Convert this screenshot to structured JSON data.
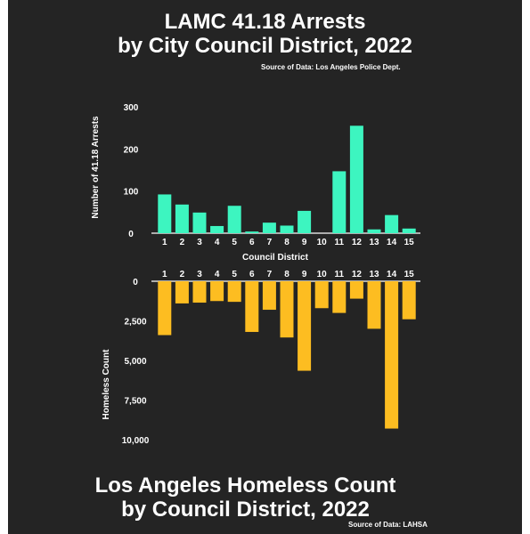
{
  "top_title_line1": "LAMC 41.18 Arrests",
  "top_title_line2": "by City Council District, 2022",
  "top_source": "Source of Data: Los Angeles Police Dept.",
  "bottom_title_line1": "Los Angeles Homeless Count",
  "bottom_title_line2": "by Council District, 2022",
  "bottom_source": "Source of Data: LAHSA",
  "colors": {
    "background": "#242424",
    "arrests": "#3df5c0",
    "homeless": "#fdbd21",
    "text": "#ffffff"
  },
  "chart_data": [
    {
      "type": "bar",
      "title": "LAMC 41.18 Arrests by City Council District, 2022",
      "xlabel": "Council District",
      "ylabel": "Number of 41.18 Arrests",
      "categories": [
        "1",
        "2",
        "3",
        "4",
        "5",
        "6",
        "7",
        "8",
        "9",
        "10",
        "11",
        "12",
        "13",
        "14",
        "15"
      ],
      "values": [
        92,
        68,
        49,
        17,
        65,
        4,
        25,
        18,
        53,
        0,
        147,
        255,
        9,
        43,
        11
      ],
      "ylim": [
        0,
        300
      ],
      "yticks": [
        "0",
        "100",
        "200",
        "300"
      ],
      "grid": false
    },
    {
      "type": "bar",
      "title": "Los Angeles Homeless Count by Council District, 2022",
      "xlabel": "Council District",
      "ylabel": "Homeless Count",
      "categories": [
        "1",
        "2",
        "3",
        "4",
        "5",
        "6",
        "7",
        "8",
        "9",
        "10",
        "11",
        "12",
        "13",
        "14",
        "15"
      ],
      "values": [
        3400,
        1400,
        1350,
        1250,
        1300,
        3200,
        1800,
        3550,
        5650,
        1700,
        2000,
        1100,
        3000,
        9300,
        2400
      ],
      "ylim": [
        0,
        10000
      ],
      "yticks": [
        "0",
        "2,500",
        "5,000",
        "7,500",
        "10,000"
      ],
      "inverted": true,
      "grid": false
    }
  ]
}
